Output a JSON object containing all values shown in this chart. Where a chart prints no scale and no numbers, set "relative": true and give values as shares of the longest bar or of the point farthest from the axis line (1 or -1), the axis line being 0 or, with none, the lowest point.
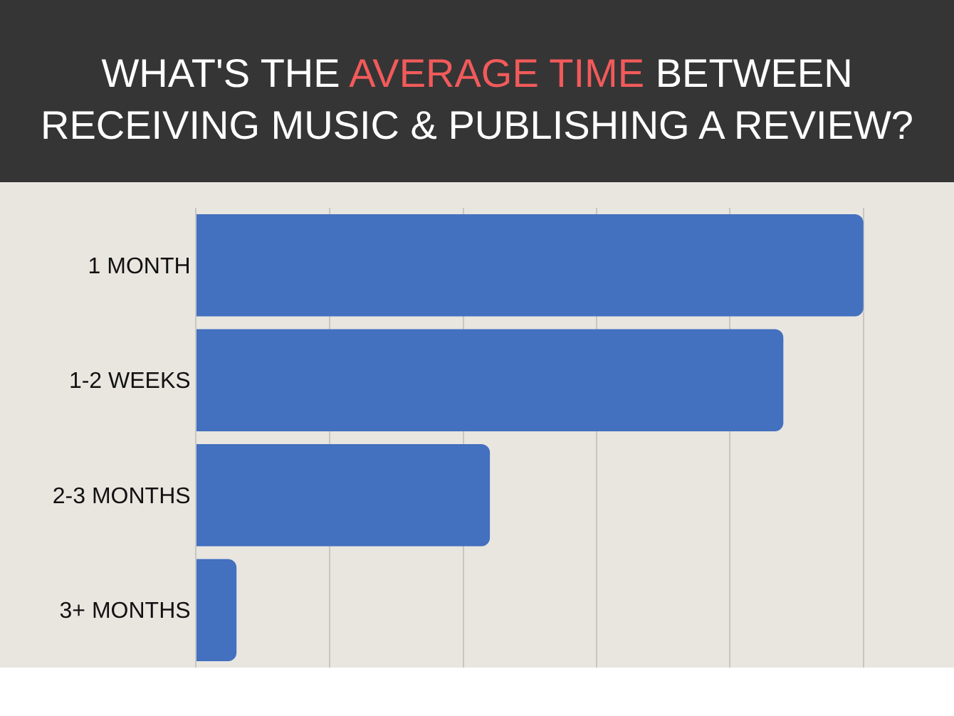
{
  "chart_data": {
    "type": "bar",
    "orientation": "horizontal",
    "relative": true,
    "title": "WHAT'S THE AVERAGE TIME BETWEEN RECEIVING MUSIC & PUBLISHING A REVIEW?",
    "categories": [
      "1 MONTH",
      "1-2 WEEKS",
      "2-3 MONTHS",
      "3+ MONTHS"
    ],
    "values": [
      1,
      0.88,
      0.44,
      0.06
    ],
    "color": "#4370bf",
    "grid": "x"
  }
}
